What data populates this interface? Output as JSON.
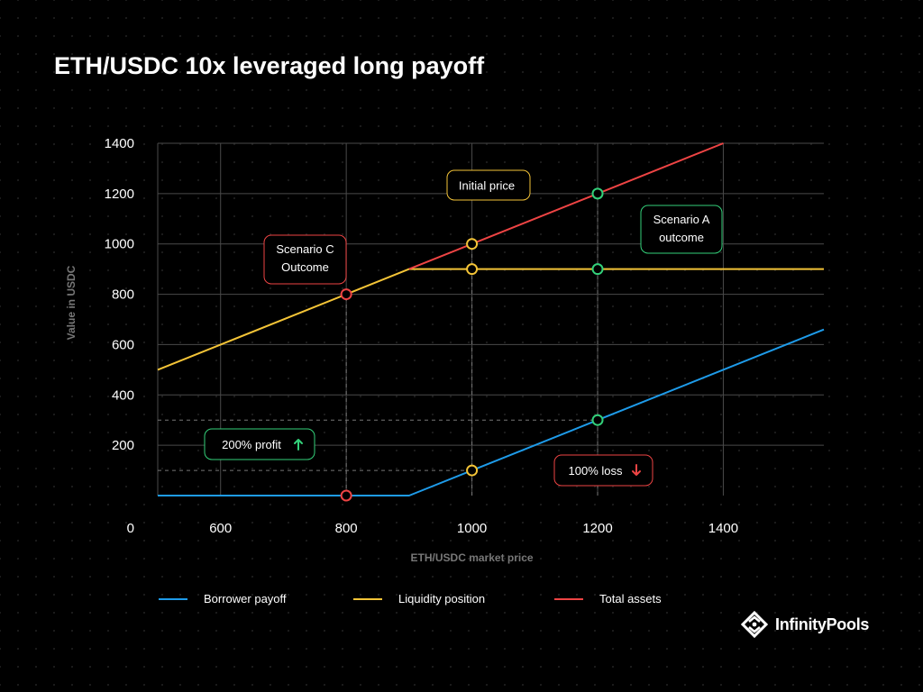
{
  "title": "ETH/USDC 10x leveraged long payoff",
  "chart_data": {
    "type": "line",
    "title": "ETH/USDC 10x leveraged long payoff",
    "xlabel": "ETH/USDC market price",
    "ylabel": "Value in USDC",
    "xlim": [
      500,
      1560
    ],
    "ylim": [
      0,
      1400
    ],
    "x_ticks": [
      600,
      800,
      1000,
      1200,
      1400
    ],
    "x_tick_labels": [
      "600",
      "800",
      "1000",
      "1200",
      "1400"
    ],
    "y_ticks": [
      0,
      200,
      400,
      600,
      800,
      1000,
      1200,
      1400
    ],
    "y_tick_labels": [
      "0",
      "200",
      "400",
      "600",
      "800",
      "1000",
      "1200",
      "1400"
    ],
    "grid": true,
    "legend_position": "bottom",
    "series": [
      {
        "name": "Borrower payoff",
        "color": "#1E9BE9",
        "x": [
          500,
          900,
          1000,
          1200,
          1560
        ],
        "y": [
          0,
          0,
          100,
          300,
          660
        ]
      },
      {
        "name": "Liquidity position",
        "color": "#F4C437",
        "x": [
          500,
          800,
          900,
          1000,
          1200,
          1560
        ],
        "y": [
          500,
          800,
          900,
          900,
          900,
          900
        ]
      },
      {
        "name": "Total assets",
        "color": "#EE4444",
        "x": [
          900,
          1000,
          1200,
          1400
        ],
        "y": [
          900,
          1000,
          1200,
          1400
        ]
      }
    ],
    "markers": [
      {
        "x": 1000,
        "y": 1000,
        "color": "#F4C437"
      },
      {
        "x": 1000,
        "y": 900,
        "color": "#F4C437"
      },
      {
        "x": 1000,
        "y": 100,
        "color": "#F4C437"
      },
      {
        "x": 800,
        "y": 800,
        "color": "#EE4444"
      },
      {
        "x": 800,
        "y": 0,
        "color": "#EE4444"
      },
      {
        "x": 1200,
        "y": 1200,
        "color": "#33D17A"
      },
      {
        "x": 1200,
        "y": 900,
        "color": "#33D17A"
      },
      {
        "x": 1200,
        "y": 300,
        "color": "#33D17A"
      }
    ],
    "guides": [
      {
        "from": [
          800,
          0
        ],
        "to": [
          800,
          800
        ]
      },
      {
        "from": [
          1000,
          0
        ],
        "to": [
          1000,
          1000
        ]
      },
      {
        "from": [
          1200,
          0
        ],
        "to": [
          1200,
          1200
        ]
      },
      {
        "from": [
          500,
          300
        ],
        "to": [
          1200,
          300
        ]
      },
      {
        "from": [
          500,
          100
        ],
        "to": [
          1000,
          100
        ]
      }
    ],
    "annotations": [
      {
        "lines": [
          "Initial price"
        ],
        "color": "#F4C437"
      },
      {
        "lines": [
          "Scenario A",
          "outcome"
        ],
        "color": "#33D17A"
      },
      {
        "lines": [
          "Scenario C",
          "Outcome"
        ],
        "color": "#EE4444"
      },
      {
        "lines": [
          "200% profit"
        ],
        "color": "#33D17A",
        "arrow": "up"
      },
      {
        "lines": [
          "100% loss"
        ],
        "color": "#EE4444",
        "arrow": "down"
      }
    ]
  },
  "legend": {
    "items": [
      {
        "label": "Borrower payoff",
        "color": "#1E9BE9"
      },
      {
        "label": "Liquidity position",
        "color": "#F4C437"
      },
      {
        "label": "Total assets",
        "color": "#EE4444"
      }
    ]
  },
  "brand": {
    "name": "InfinityPools"
  }
}
